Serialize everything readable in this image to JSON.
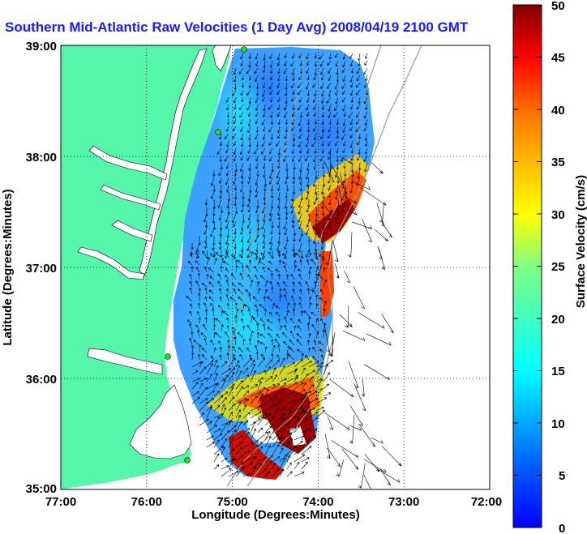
{
  "title": "Southern Mid-Atlantic Raw Velocities (1 Day Avg) 2008/04/19 2100 GMT",
  "axes": {
    "xlabel": "Longitude (Degrees:Minutes)",
    "ylabel": "Latitude (Degrees:Minutes)",
    "x_ticks": [
      "77:00",
      "76:00",
      "75:00",
      "74:00",
      "73:00",
      "72:00"
    ],
    "y_ticks": [
      "39:00",
      "38:00",
      "37:00",
      "36:00",
      "35:00"
    ],
    "x_range_deg_west": [
      77,
      72
    ],
    "y_range_deg_north": [
      35,
      39
    ],
    "grid": "dotted"
  },
  "colorbar": {
    "label": "Surface Velocity (cm/s)",
    "ticks": [
      "0",
      "5",
      "10",
      "15",
      "20",
      "25",
      "30",
      "35",
      "40",
      "45",
      "50"
    ],
    "range": [
      0,
      50
    ],
    "colormap": "jet"
  },
  "colors": {
    "land": "#55f5aa",
    "title": "#1a1aff",
    "station": "#22dd22",
    "bathymetry": "#999999"
  }
}
